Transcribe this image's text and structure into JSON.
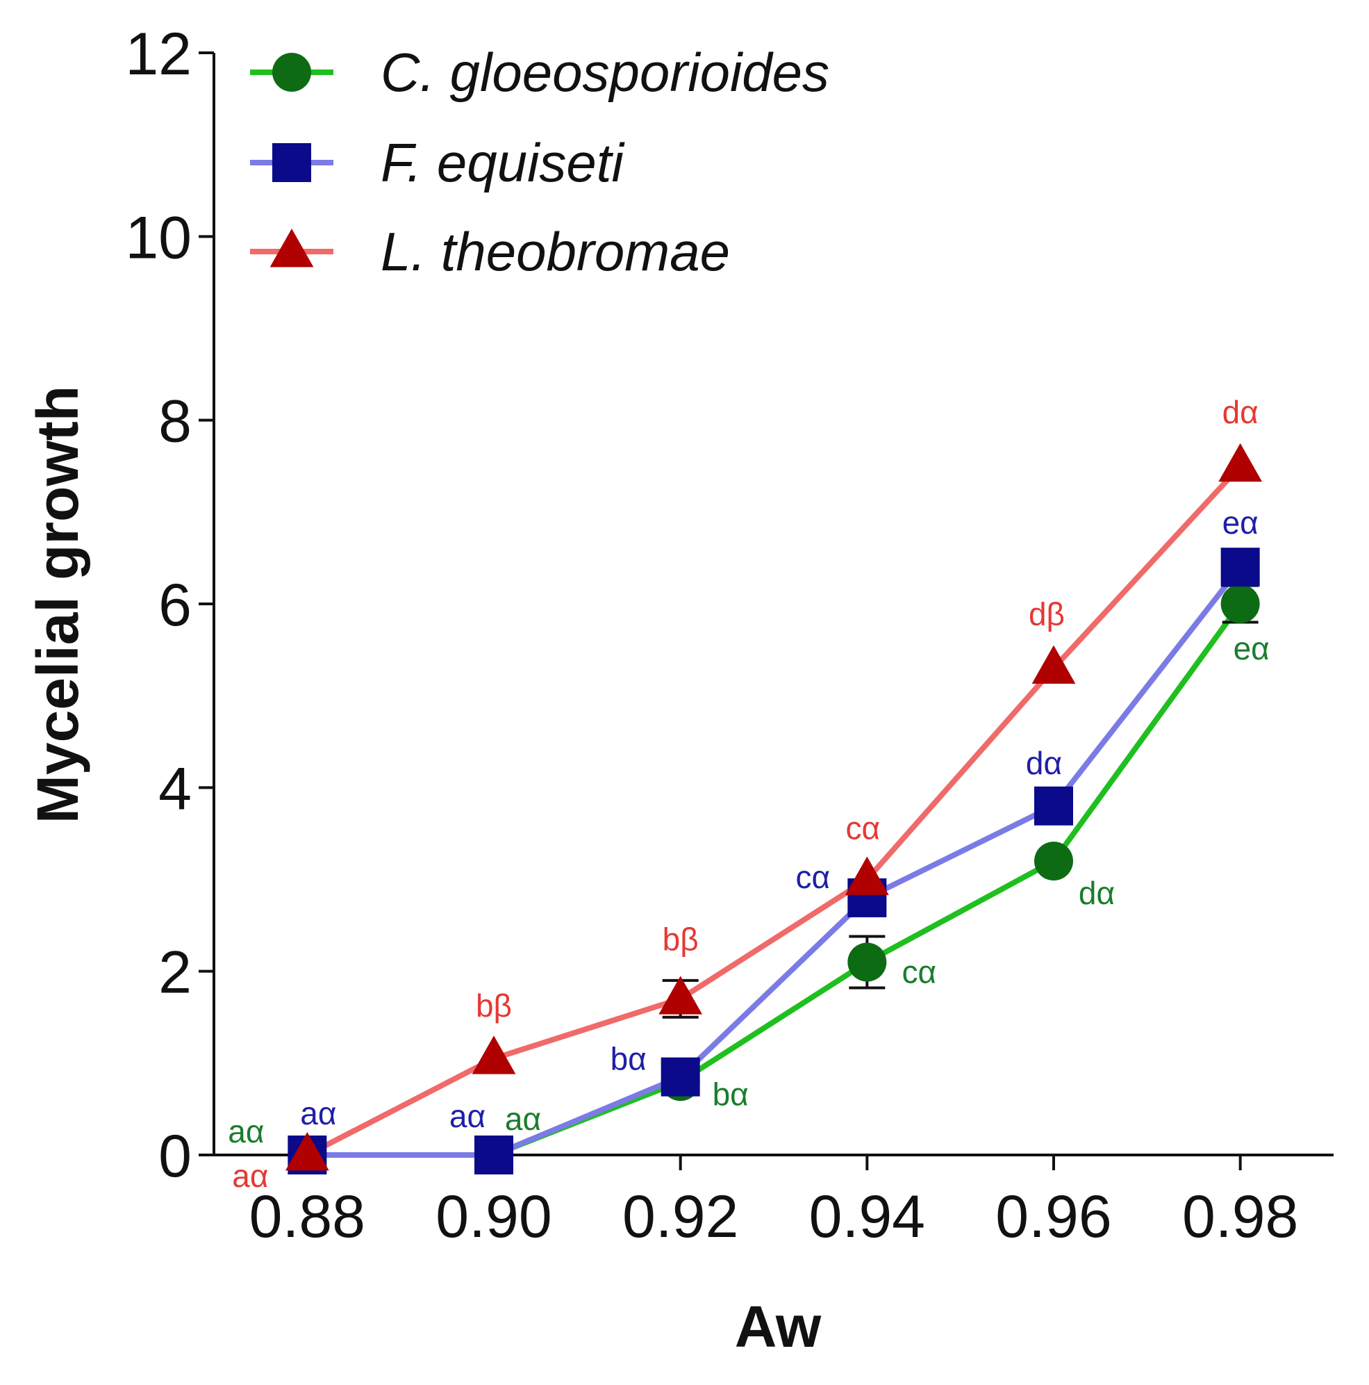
{
  "chart_data": {
    "type": "line",
    "title": "",
    "xlabel": "Aw",
    "ylabel": "Mycelial growth",
    "x": [
      0.88,
      0.9,
      0.92,
      0.94,
      0.96,
      0.98
    ],
    "x_tick_labels": [
      "0.88",
      "0.90",
      "0.92",
      "0.94",
      "0.96",
      "0.98"
    ],
    "xlim": [
      0.87,
      0.99
    ],
    "ylim": [
      0,
      12
    ],
    "y_ticks": [
      0,
      2,
      4,
      6,
      8,
      10,
      12
    ],
    "grid": false,
    "legend_position": "top-left",
    "series": [
      {
        "name": "C. gloeosporioides",
        "color": "#1fbf1f",
        "marker_color": "#0d6b14",
        "annotation_color": "#1a7d2c",
        "marker": "circle",
        "values": [
          0,
          0,
          0.8,
          2.1,
          3.2,
          6.0
        ],
        "errors": [
          0,
          0,
          0,
          0.28,
          0.05,
          0.2
        ],
        "annotations": [
          "aα",
          "aα",
          "bα",
          "cα",
          "dα",
          "eα"
        ]
      },
      {
        "name": "F. equiseti",
        "color": "#7b7be6",
        "marker_color": "#0a0a8a",
        "annotation_color": "#1f1fa8",
        "marker": "square",
        "values": [
          0,
          0,
          0.85,
          2.8,
          3.8,
          6.4
        ],
        "errors": [
          0,
          0,
          0,
          0.1,
          0,
          0.1
        ],
        "annotations": [
          "aα",
          "aα",
          "bα",
          "cα",
          "dα",
          "eα"
        ]
      },
      {
        "name": "L. theobromae",
        "color": "#f06a6a",
        "marker_color": "#b00000",
        "annotation_color": "#e53935",
        "marker": "triangle",
        "values": [
          0,
          1.05,
          1.7,
          3.0,
          5.3,
          7.5
        ],
        "errors": [
          0,
          0,
          0.2,
          0,
          0,
          0
        ],
        "annotations": [
          "aα",
          "bβ",
          "bβ",
          "cα",
          "dβ",
          "dα"
        ]
      }
    ]
  }
}
